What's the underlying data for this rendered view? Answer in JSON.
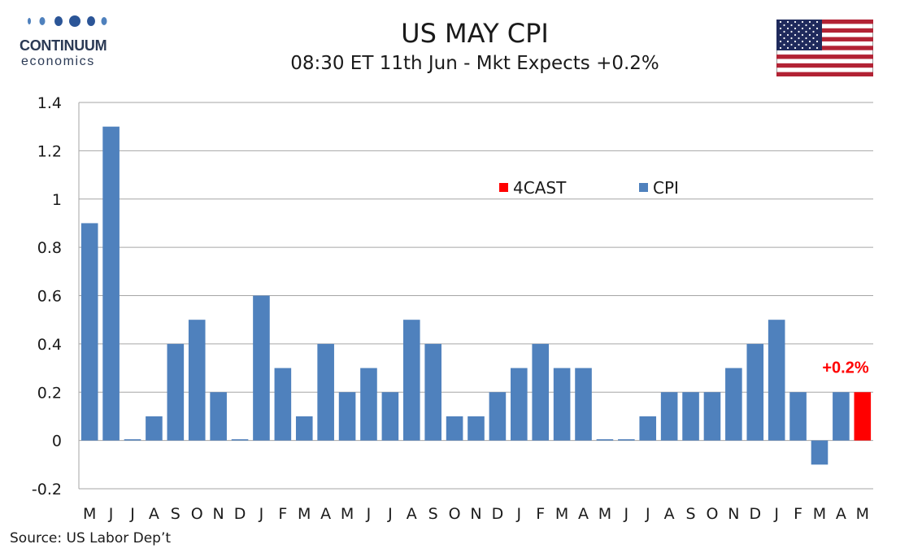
{
  "logo": {
    "line1": "CONTINUUM",
    "line2": "economics"
  },
  "header": {
    "title": "US MAY CPI",
    "subtitle": "08:30 ET 11th Jun - Mkt Expects +0.2%"
  },
  "flag": {
    "icon": "us-flag-icon"
  },
  "source": "Source: US Labor Dep’t",
  "colors": {
    "cpi": "#4f81bd",
    "forecast": "#ff0000",
    "grid": "#a6a6a6",
    "annotation": "#ff0000"
  },
  "chart_data": {
    "type": "bar",
    "categories": [
      "M",
      "J",
      "J",
      "A",
      "S",
      "O",
      "N",
      "D",
      "J",
      "F",
      "M",
      "A",
      "M",
      "J",
      "J",
      "A",
      "S",
      "O",
      "N",
      "D",
      "J",
      "F",
      "M",
      "A",
      "M",
      "J",
      "J",
      "A",
      "S",
      "O",
      "N",
      "D",
      "J",
      "F",
      "M",
      "A",
      "M"
    ],
    "series": [
      {
        "name": "CPI",
        "values": [
          0.9,
          1.3,
          0.005,
          0.1,
          0.4,
          0.5,
          0.2,
          0.005,
          0.6,
          0.3,
          0.1,
          0.4,
          0.2,
          0.3,
          0.2,
          0.5,
          0.4,
          0.1,
          0.1,
          0.2,
          0.3,
          0.4,
          0.3,
          0.3,
          0.005,
          0.005,
          0.1,
          0.2,
          0.2,
          0.2,
          0.3,
          0.4,
          0.5,
          0.2,
          -0.1,
          0.2,
          null
        ]
      },
      {
        "name": "4CAST",
        "values": [
          null,
          null,
          null,
          null,
          null,
          null,
          null,
          null,
          null,
          null,
          null,
          null,
          null,
          null,
          null,
          null,
          null,
          null,
          null,
          null,
          null,
          null,
          null,
          null,
          null,
          null,
          null,
          null,
          null,
          null,
          null,
          null,
          null,
          null,
          null,
          null,
          0.2
        ]
      }
    ],
    "ylim": [
      -0.2,
      1.4
    ],
    "yticks": [
      "1.4",
      "1.2",
      "1",
      "0.8",
      "0.6",
      "0.4",
      "0.2",
      "0",
      "-0.2"
    ],
    "ytick_values": [
      1.4,
      1.2,
      1.0,
      0.8,
      0.6,
      0.4,
      0.2,
      0,
      -0.2
    ],
    "grid": true,
    "legend": {
      "placement": "top-center",
      "items": [
        "4CAST",
        "CPI"
      ]
    },
    "annotation": {
      "text": "+0.2%",
      "category_index": 36,
      "value": 0.2
    }
  }
}
